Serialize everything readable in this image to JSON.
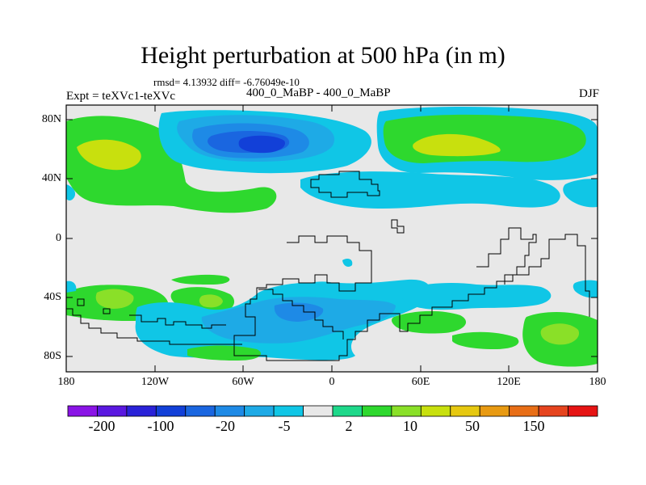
{
  "title": "Height perturbation at 500 hPa (in m)",
  "stats": "rmsd= 4.13932 diff= -6.76049e-10",
  "experiment": "Expt = teXVc1-teXVc",
  "comparison": "400_0_MaBP - 400_0_MaBP",
  "season": "DJF",
  "y_ticks": [
    "80N",
    "40N",
    "0",
    "40S",
    "80S"
  ],
  "x_ticks": [
    "180",
    "120W",
    "60W",
    "0",
    "60E",
    "120E",
    "180"
  ],
  "colorbar": {
    "colors": [
      "#8a14e6",
      "#5a18e0",
      "#2a22d8",
      "#1240d8",
      "#1a66e0",
      "#1e8ae6",
      "#1eaae6",
      "#10c6e6",
      "#e8e8e8",
      "#1ed88a",
      "#2ed82e",
      "#8ae028",
      "#c8e00e",
      "#e6c810",
      "#e89a12",
      "#e86e16",
      "#e6441e",
      "#e61414"
    ],
    "labels": [
      "-200",
      "-100",
      "-20",
      "-5",
      "2",
      "10",
      "50",
      "150"
    ]
  }
}
